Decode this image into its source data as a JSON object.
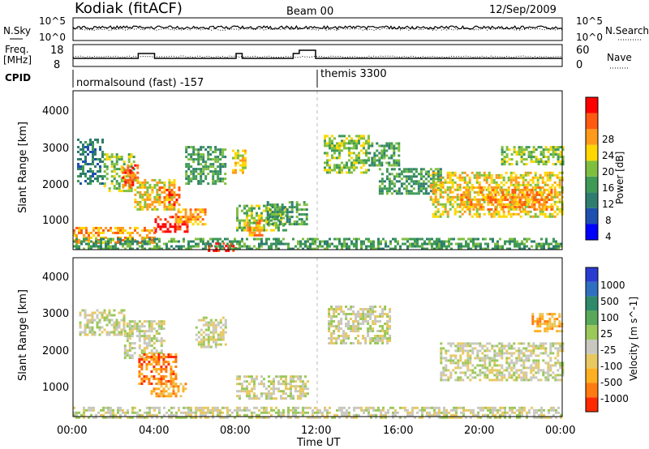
{
  "header": {
    "station": "Kodiak (fitACF)",
    "beam": "Beam 00",
    "date": "12/Sep/2009"
  },
  "noise_panel": {
    "left_label": "N.Sky",
    "right_label": "N.Search",
    "left_ticks": [
      "10^5",
      "10^0"
    ],
    "right_ticks": [
      "10^5",
      "10^0"
    ]
  },
  "freq_panel": {
    "left_label_line1": "Freq.",
    "left_label_line2": "[MHz]",
    "left_ticks": [
      "18",
      "8"
    ],
    "right_ticks": [
      "60",
      "0"
    ],
    "right_label": "Nave"
  },
  "cpid_panel": {
    "label": "CPID",
    "modes": [
      {
        "name": "normalsound (fast) -157",
        "start": "00:00",
        "end": "12:00"
      },
      {
        "name": "themis 3300",
        "start": "12:00",
        "end": "24:00"
      }
    ]
  },
  "xaxis": {
    "title": "Time UT",
    "ticks": [
      "00:00",
      "04:00",
      "08:00",
      "12:00",
      "16:00",
      "20:00",
      "00:00"
    ]
  },
  "power_panel": {
    "ylabel": "Slant Range [km]",
    "yticks": [
      "4000",
      "3000",
      "2000",
      "1000"
    ],
    "colorbar_title": "Power [dB]",
    "colorbar_ticks": [
      "28",
      "24",
      "20",
      "16",
      "12",
      "8",
      "4"
    ],
    "colors": [
      "#0000ff",
      "#1f4fb0",
      "#2e7d6e",
      "#3f9a55",
      "#7fbf3f",
      "#ffd700",
      "#ff9a1a",
      "#ff5a10",
      "#ff0000"
    ]
  },
  "velocity_panel": {
    "ylabel": "Slant Range [km]",
    "yticks": [
      "4000",
      "3000",
      "2000",
      "1000"
    ],
    "colorbar_title": "Velocity [m s^-1]",
    "colorbar_ticks": [
      "1000",
      "500",
      "100",
      "25",
      "-25",
      "-100",
      "-500",
      "-1000"
    ],
    "colors": [
      "#2a3cd0",
      "#2f6fc0",
      "#2e8a6a",
      "#5aa85a",
      "#9bc85a",
      "#c8c8c0",
      "#e8c860",
      "#ffb020",
      "#ff7a10",
      "#ff2a00"
    ]
  },
  "chart_data": {
    "type": "heatmap",
    "x_range_hours": [
      0,
      24
    ],
    "y_range_km": [
      180,
      4500
    ],
    "power_regions": [
      {
        "t0": 0.2,
        "t1": 1.5,
        "r0": 2000,
        "r1": 3200,
        "level": 2
      },
      {
        "t0": 1.5,
        "t1": 3.0,
        "r0": 1800,
        "r1": 2800,
        "level": 4
      },
      {
        "t0": 2.4,
        "t1": 3.2,
        "r0": 1900,
        "r1": 2500,
        "level": 7
      },
      {
        "t0": 3.0,
        "t1": 5.0,
        "r0": 1300,
        "r1": 2100,
        "level": 5
      },
      {
        "t0": 4.2,
        "t1": 5.2,
        "r0": 1400,
        "r1": 1900,
        "level": 7
      },
      {
        "t0": 4.0,
        "t1": 5.6,
        "r0": 700,
        "r1": 1100,
        "level": 8
      },
      {
        "t0": 5.0,
        "t1": 6.5,
        "r0": 900,
        "r1": 1300,
        "level": 6
      },
      {
        "t0": 0.0,
        "t1": 4.0,
        "r0": 400,
        "r1": 800,
        "level": 6
      },
      {
        "t0": 6.5,
        "t1": 8.0,
        "r0": 180,
        "r1": 380,
        "level": 8
      },
      {
        "t0": 5.5,
        "t1": 7.5,
        "r0": 2000,
        "r1": 3000,
        "level": 3
      },
      {
        "t0": 7.8,
        "t1": 8.5,
        "r0": 2300,
        "r1": 2900,
        "level": 5
      },
      {
        "t0": 8.0,
        "t1": 10.5,
        "r0": 700,
        "r1": 1400,
        "level": 4
      },
      {
        "t0": 8.5,
        "t1": 9.3,
        "r0": 600,
        "r1": 1000,
        "level": 6
      },
      {
        "t0": 9.5,
        "t1": 11.5,
        "r0": 900,
        "r1": 1500,
        "level": 3
      },
      {
        "t0": 12.3,
        "t1": 14.5,
        "r0": 2300,
        "r1": 3300,
        "level": 4
      },
      {
        "t0": 14.5,
        "t1": 16.0,
        "r0": 2500,
        "r1": 3100,
        "level": 3
      },
      {
        "t0": 15.0,
        "t1": 18.0,
        "r0": 1700,
        "r1": 2400,
        "level": 3
      },
      {
        "t0": 17.5,
        "t1": 24.0,
        "r0": 1100,
        "r1": 2300,
        "level": 5
      },
      {
        "t0": 19.0,
        "t1": 23.5,
        "r0": 1300,
        "r1": 1900,
        "level": 6
      },
      {
        "t0": 21.0,
        "t1": 24.0,
        "r0": 2500,
        "r1": 3000,
        "level": 4
      },
      {
        "t0": 0.0,
        "t1": 24.0,
        "r0": 180,
        "r1": 500,
        "level": 3
      }
    ],
    "velocity_regions": [
      {
        "t0": 0.3,
        "t1": 2.5,
        "r0": 2400,
        "r1": 3100,
        "level": 5
      },
      {
        "t0": 2.5,
        "t1": 4.5,
        "r0": 1800,
        "r1": 2800,
        "level": 5
      },
      {
        "t0": 3.2,
        "t1": 5.0,
        "r0": 1100,
        "r1": 1900,
        "level": 8
      },
      {
        "t0": 3.8,
        "t1": 5.5,
        "r0": 750,
        "r1": 1100,
        "level": 7
      },
      {
        "t0": 6.0,
        "t1": 7.5,
        "r0": 2100,
        "r1": 2900,
        "level": 5
      },
      {
        "t0": 8.0,
        "t1": 11.5,
        "r0": 700,
        "r1": 1300,
        "level": 5
      },
      {
        "t0": 12.5,
        "t1": 15.5,
        "r0": 2200,
        "r1": 3200,
        "level": 5
      },
      {
        "t0": 18.0,
        "t1": 24.0,
        "r0": 1200,
        "r1": 2200,
        "level": 5
      },
      {
        "t0": 22.5,
        "t1": 24.0,
        "r0": 2500,
        "r1": 3000,
        "level": 7
      },
      {
        "t0": 0.0,
        "t1": 24.0,
        "r0": 180,
        "r1": 450,
        "level": 5
      }
    ]
  }
}
